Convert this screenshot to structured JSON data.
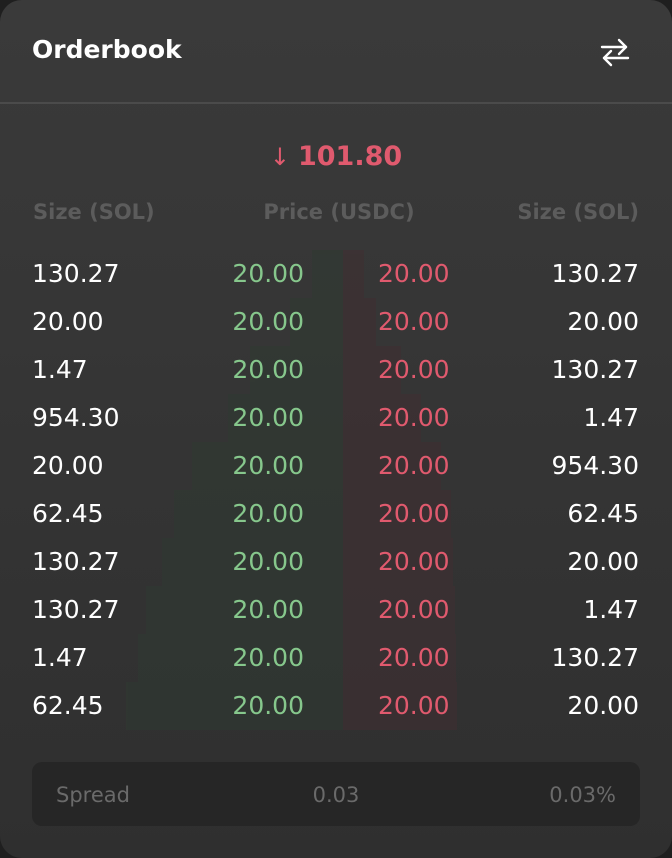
{
  "header": {
    "title": "Orderbook",
    "swap_icon": "swap-arrows-icon"
  },
  "last_price": {
    "value": "101.80",
    "direction": "down",
    "color": "#e05a6e"
  },
  "columns": {
    "bid_size": "Size (SOL)",
    "price": "Price (USDC)",
    "ask_size": "Size (SOL)"
  },
  "rows": [
    {
      "bid_size": "130.27",
      "bid_price": "20.00",
      "ask_price": "20.00",
      "ask_size": "130.27"
    },
    {
      "bid_size": "20.00",
      "bid_price": "20.00",
      "ask_price": "20.00",
      "ask_size": "20.00"
    },
    {
      "bid_size": "1.47",
      "bid_price": "20.00",
      "ask_price": "20.00",
      "ask_size": "130.27"
    },
    {
      "bid_size": "954.30",
      "bid_price": "20.00",
      "ask_price": "20.00",
      "ask_size": "1.47"
    },
    {
      "bid_size": "20.00",
      "bid_price": "20.00",
      "ask_price": "20.00",
      "ask_size": "954.30"
    },
    {
      "bid_size": "62.45",
      "bid_price": "20.00",
      "ask_price": "20.00",
      "ask_size": "62.45"
    },
    {
      "bid_size": "130.27",
      "bid_price": "20.00",
      "ask_price": "20.00",
      "ask_size": "20.00"
    },
    {
      "bid_size": "130.27",
      "bid_price": "20.00",
      "ask_price": "20.00",
      "ask_size": "1.47"
    },
    {
      "bid_size": "1.47",
      "bid_price": "20.00",
      "ask_price": "20.00",
      "ask_size": "130.27"
    },
    {
      "bid_size": "62.45",
      "bid_price": "20.00",
      "ask_price": "20.00",
      "ask_size": "20.00"
    }
  ],
  "spread": {
    "label": "Spread",
    "value": "0.03",
    "percent": "0.03%"
  },
  "colors": {
    "bid": "#86c78c",
    "ask": "#e05a6e"
  }
}
